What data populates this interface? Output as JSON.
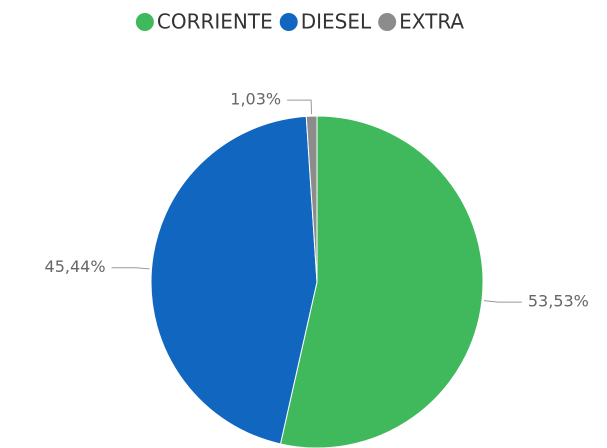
{
  "chart_data": {
    "type": "pie",
    "categories": [
      "CORRIENTE",
      "DIESEL",
      "EXTRA"
    ],
    "values": [
      53.53,
      45.44,
      1.03
    ],
    "value_labels": [
      "53,53%",
      "45,44%",
      "1,03%"
    ],
    "colors": [
      "#40b95c",
      "#1167c0",
      "#8c8c8c"
    ],
    "legend": "top"
  }
}
